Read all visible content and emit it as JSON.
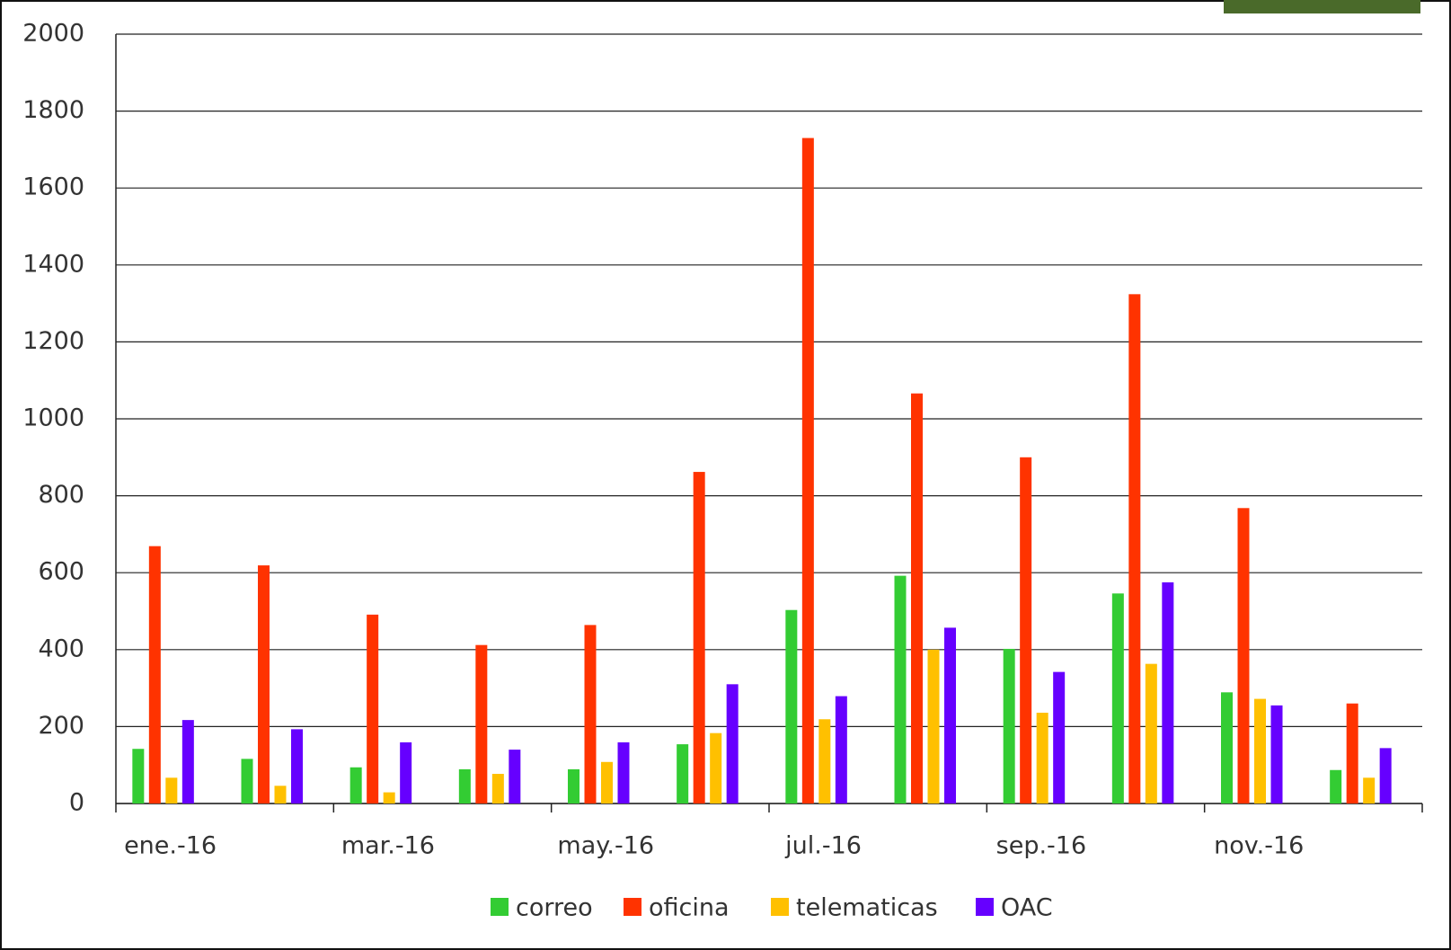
{
  "chart_data": {
    "type": "bar",
    "categories": [
      "ene.-16",
      null,
      "mar.-16",
      null,
      "may.-16",
      null,
      "jul.-16",
      null,
      "sep.-16",
      null,
      "nov.-16",
      null
    ],
    "series": [
      {
        "name": "correo",
        "color": "#33cc33",
        "values": [
          142,
          116,
          94,
          89,
          89,
          154,
          503,
          592,
          402,
          546,
          289,
          87
        ]
      },
      {
        "name": "oficina",
        "color": "#ff3300",
        "values": [
          669,
          619,
          491,
          412,
          464,
          862,
          1730,
          1066,
          900,
          1324,
          768,
          260
        ]
      },
      {
        "name": "telematicas",
        "color": "#ffc000",
        "values": [
          67,
          46,
          29,
          77,
          108,
          183,
          219,
          400,
          236,
          363,
          272,
          67
        ]
      },
      {
        "name": "OAC",
        "color": "#6600ff",
        "values": [
          217,
          193,
          159,
          140,
          159,
          310,
          279,
          457,
          342,
          575,
          255,
          144
        ]
      }
    ],
    "ylim": [
      0,
      2000
    ],
    "yticks": [
      0,
      200,
      400,
      600,
      800,
      1000,
      1200,
      1400,
      1600,
      1800,
      2000
    ],
    "grid": true
  }
}
